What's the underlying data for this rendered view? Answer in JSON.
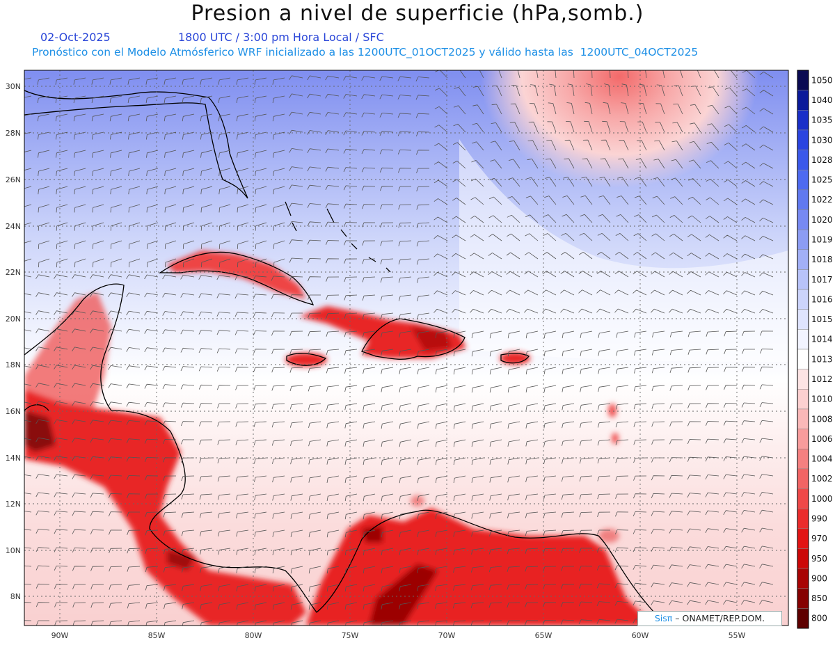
{
  "header": {
    "title": "Presion a nivel de superficie (hPa,somb.)",
    "date": "02-Oct-2025",
    "time_info": "1800 UTC / 3:00 pm Hora Local / SFC",
    "model_info": "Pronóstico con el Modelo Atmósferico WRF inicializado a las 1200UTC_01OCT2025 y válido hasta las  1200UTC_04OCT2025"
  },
  "map": {
    "lat_labels": [
      "30N",
      "28N",
      "26N",
      "24N",
      "22N",
      "20N",
      "18N",
      "16N",
      "14N",
      "12N",
      "10N",
      "8N"
    ],
    "lon_labels": [
      "90W",
      "85W",
      "80W",
      "75W",
      "70W",
      "65W",
      "60W",
      "55W"
    ]
  },
  "colorbar": {
    "levels": [
      "1050",
      "1040",
      "1035",
      "1030",
      "1028",
      "1025",
      "1022",
      "1020",
      "1019",
      "1018",
      "1017",
      "1016",
      "1015",
      "1014",
      "1013",
      "1012",
      "1010",
      "1008",
      "1006",
      "1004",
      "1002",
      "1000",
      "990",
      "970",
      "950",
      "900",
      "850",
      "800"
    ],
    "colors": [
      "#0a0a52",
      "#0a1a9a",
      "#1a2fc8",
      "#2a44e0",
      "#3a58ea",
      "#4d6af0",
      "#6079f0",
      "#7789f2",
      "#8c9cf4",
      "#a2b0f7",
      "#b8c3f9",
      "#ccd4fb",
      "#dfe4fd",
      "#f2f4ff",
      "#ffffff",
      "#fde4e4",
      "#fcd0d0",
      "#fab8b8",
      "#f89c9c",
      "#f58080",
      "#f26464",
      "#ef4848",
      "#eb2c2c",
      "#e21414",
      "#cc0808",
      "#a80404",
      "#860202",
      "#5e0000"
    ]
  },
  "credit": {
    "brand": "Sisπ",
    "text": " – ONAMET/REP.DOM."
  }
}
